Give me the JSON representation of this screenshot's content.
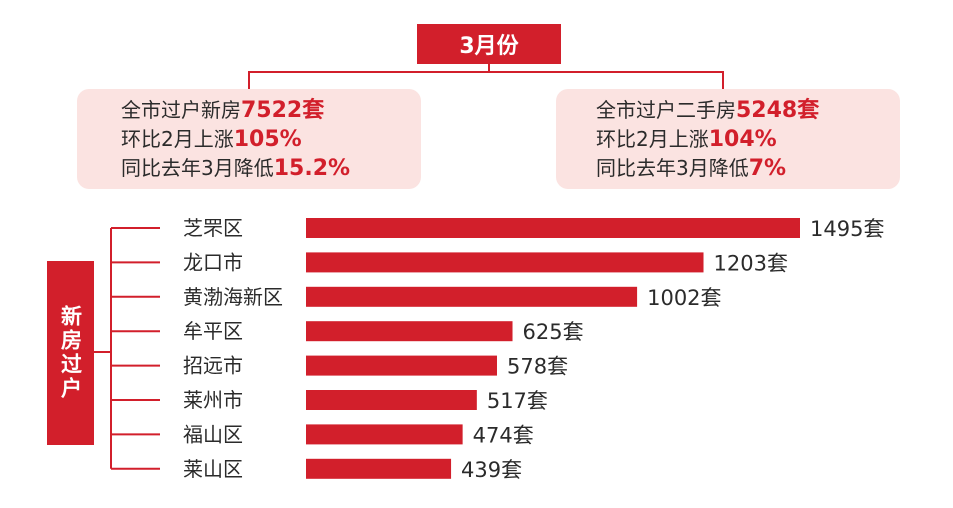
{
  "month_label": "3月份",
  "new_house_summary": {
    "lines": [
      {
        "text": "全市过户新房",
        "value": "7522套"
      },
      {
        "text": "环比2月上涨",
        "value": "105%"
      },
      {
        "text": "同比去年3月降低",
        "value": "15.2%"
      }
    ]
  },
  "second_hand_summary": {
    "lines": [
      {
        "text": "全市过户二手房",
        "value": "5248套"
      },
      {
        "text": "环比2月上涨",
        "value": "104%"
      },
      {
        "text": "同比去年3月降低",
        "value": "7%"
      }
    ]
  },
  "side_label": "新房过户",
  "colors": {
    "accent": "#d21f2b",
    "card_bg": "#fbe3e1"
  },
  "chart_data": {
    "type": "bar",
    "orientation": "horizontal",
    "unit": "套",
    "categories": [
      "芝罘区",
      "龙口市",
      "黄渤海新区",
      "牟平区",
      "招远市",
      "莱州市",
      "福山区",
      "莱山区"
    ],
    "values": [
      1495,
      1203,
      1002,
      625,
      578,
      517,
      474,
      439
    ],
    "value_labels": [
      "1495套",
      "1203套",
      "1002套",
      "625套",
      "578套",
      "517套",
      "474套",
      "439套"
    ]
  }
}
